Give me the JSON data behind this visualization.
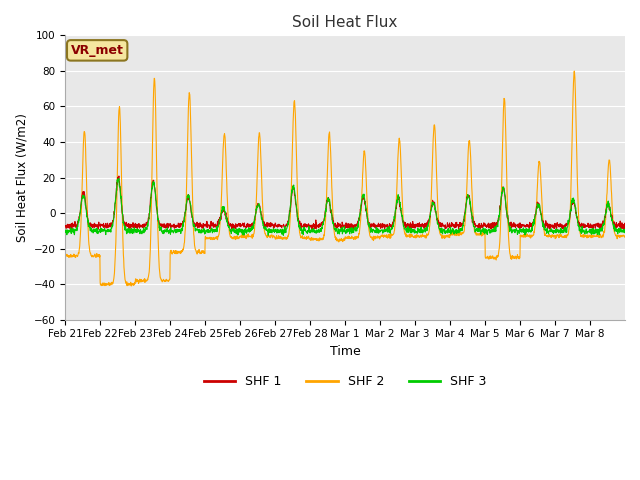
{
  "title": "Soil Heat Flux",
  "xlabel": "Time",
  "ylabel": "Soil Heat Flux (W/m2)",
  "ylim": [
    -60,
    100
  ],
  "yticks": [
    -60,
    -40,
    -20,
    0,
    20,
    40,
    60,
    80,
    100
  ],
  "fig_bg_color": "#ffffff",
  "plot_bg_color": "#e8e8e8",
  "grid_color": "#ffffff",
  "shf1_color": "#cc0000",
  "shf2_color": "#ffa500",
  "shf3_color": "#00cc00",
  "label_box": "VR_met",
  "legend_labels": [
    "SHF 1",
    "SHF 2",
    "SHF 3"
  ],
  "xtick_labels": [
    "Feb 21",
    "Feb 22",
    "Feb 23",
    "Feb 24",
    "Feb 25",
    "Feb 26",
    "Feb 27",
    "Feb 28",
    "Mar 1",
    "Mar 2",
    "Mar 3",
    "Mar 4",
    "Mar 5",
    "Mar 6",
    "Mar 7",
    "Mar 8"
  ],
  "n_points": 2000,
  "seed": 42
}
